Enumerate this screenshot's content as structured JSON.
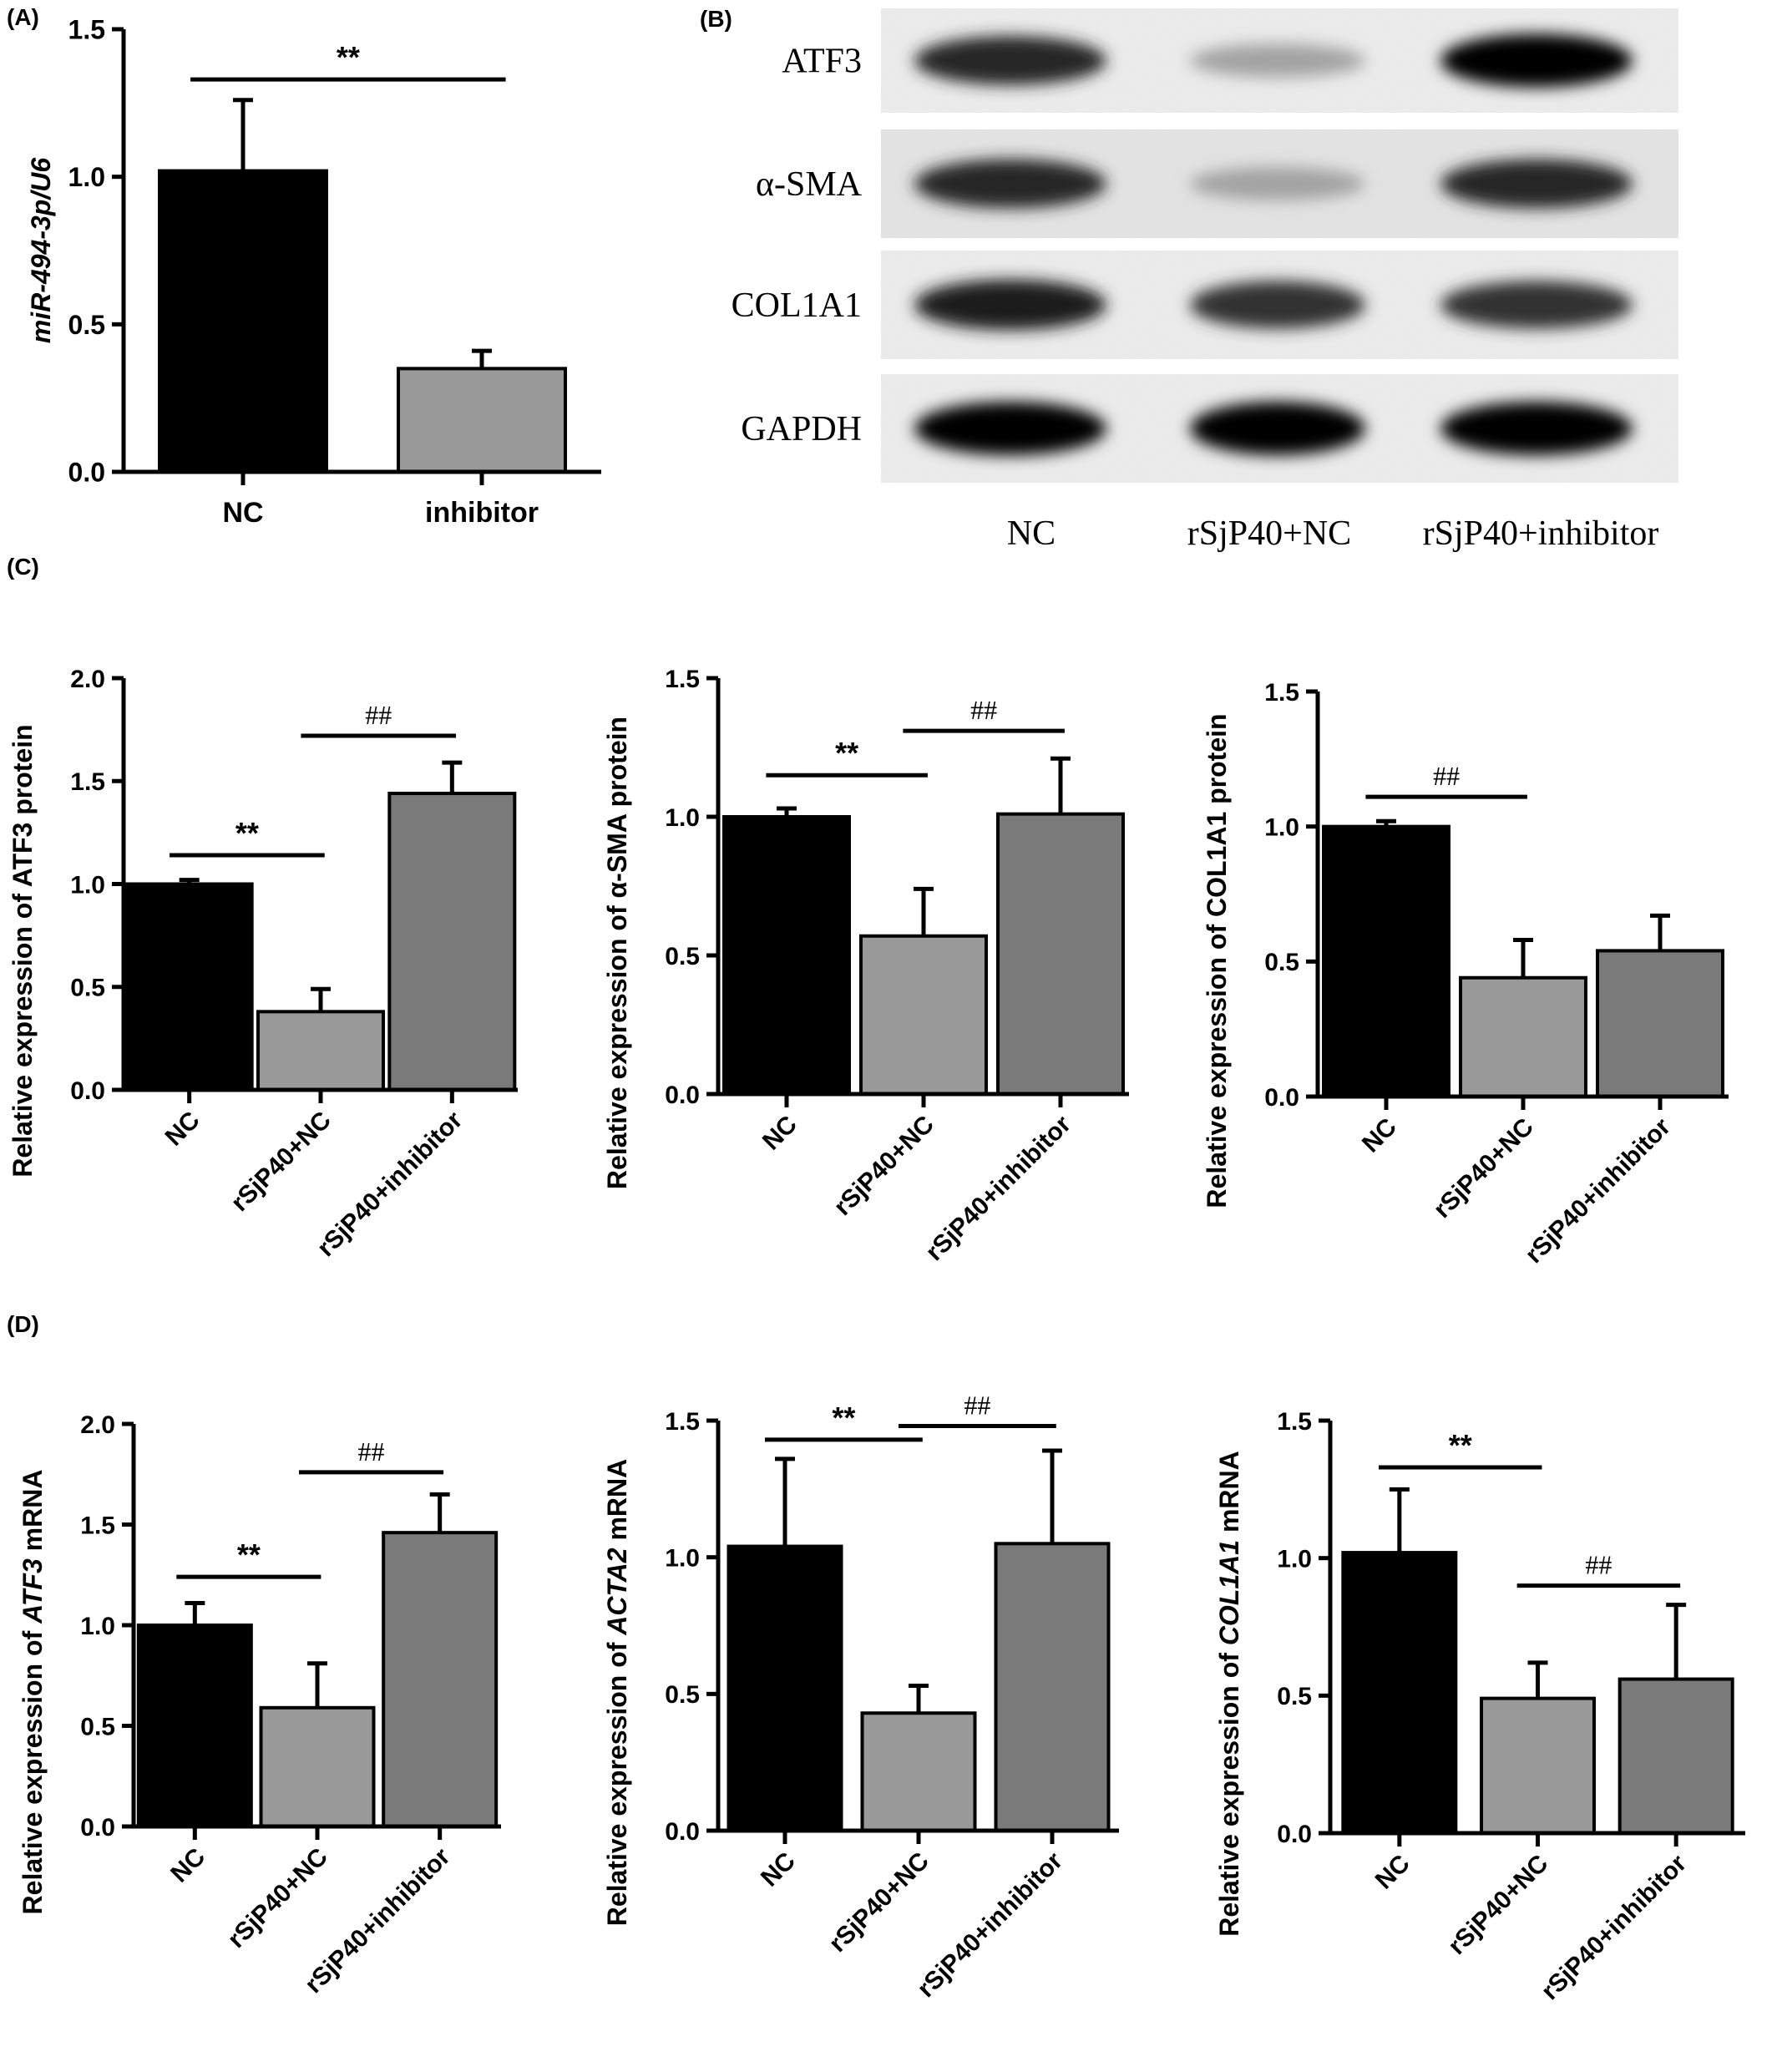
{
  "figure": {
    "panel_letters": {
      "A": "(A)",
      "B": "(B)",
      "C": "(C)",
      "D": "(D)"
    }
  },
  "colors": {
    "black_bar": "#000000",
    "light_gray_bar": "#999999",
    "dark_gray_bar": "#7a7a7a",
    "axis": "#000000",
    "text": "#000000"
  },
  "chart_data": [
    {
      "id": "A",
      "type": "bar",
      "ylabel": "miR-494-3p/U6",
      "categories": [
        "NC",
        "inhibitor"
      ],
      "values": [
        1.02,
        0.35
      ],
      "errors": [
        0.24,
        0.06
      ],
      "ylim": [
        0,
        1.5
      ],
      "yticks": [
        "0.0",
        "0.5",
        "1.0",
        "1.5"
      ],
      "bar_colors": [
        "#000000",
        "#999999"
      ],
      "significance": [
        {
          "from": 0,
          "to": 1,
          "label": "**",
          "y": 1.33,
          "style": "sans"
        }
      ],
      "rotate_labels": false
    },
    {
      "id": "C1",
      "type": "bar",
      "ylabel": "Relative expression of ATF3 protein",
      "categories": [
        "NC",
        "rSjP40+NC",
        "rSjP40+inhibitor"
      ],
      "values": [
        1.0,
        0.38,
        1.44
      ],
      "errors": [
        0.02,
        0.11,
        0.15
      ],
      "ylim": [
        0,
        2.0
      ],
      "yticks": [
        "0.0",
        "0.5",
        "1.0",
        "1.5",
        "2.0"
      ],
      "bar_colors": [
        "#000000",
        "#999999",
        "#7a7a7a"
      ],
      "significance": [
        {
          "from": 0,
          "to": 1,
          "label": "**",
          "y": 1.14,
          "style": "sans"
        },
        {
          "from": 1,
          "to": 2,
          "label": "##",
          "y": 1.72,
          "style": "serif"
        }
      ],
      "rotate_labels": true
    },
    {
      "id": "C2",
      "type": "bar",
      "ylabel": "Relative expression of α-SMA protein",
      "categories": [
        "NC",
        "rSjP40+NC",
        "rSjP40+inhibitor"
      ],
      "values": [
        1.0,
        0.57,
        1.01
      ],
      "errors": [
        0.03,
        0.17,
        0.2
      ],
      "ylim": [
        0,
        1.5
      ],
      "yticks": [
        "0.0",
        "0.5",
        "1.0",
        "1.5"
      ],
      "bar_colors": [
        "#000000",
        "#999999",
        "#7a7a7a"
      ],
      "significance": [
        {
          "from": 0,
          "to": 1,
          "label": "**",
          "y": 1.15,
          "style": "sans"
        },
        {
          "from": 1,
          "to": 2,
          "label": "##",
          "y": 1.31,
          "style": "serif"
        }
      ],
      "rotate_labels": true
    },
    {
      "id": "C3",
      "type": "bar",
      "ylabel": "Relative expression of COL1A1 protein",
      "categories": [
        "NC",
        "rSjP40+NC",
        "rSjP40+inhibitor"
      ],
      "values": [
        1.0,
        0.44,
        0.54
      ],
      "errors": [
        0.02,
        0.14,
        0.13
      ],
      "ylim": [
        0,
        1.5
      ],
      "yticks": [
        "0.0",
        "0.5",
        "1.0",
        "1.5"
      ],
      "bar_colors": [
        "#000000",
        "#999999",
        "#7a7a7a"
      ],
      "significance": [
        {
          "from": 0,
          "to": 1,
          "label": "##",
          "y": 1.11,
          "style": "serif"
        }
      ],
      "rotate_labels": true
    },
    {
      "id": "D1",
      "type": "bar",
      "ylabel": "Relative expression of ATF3 mRNA",
      "ylabel_parts": [
        {
          "text": "Relative expression of ",
          "italic": false
        },
        {
          "text": "ATF3",
          "italic": true
        },
        {
          "text": " mRNA",
          "italic": false
        }
      ],
      "categories": [
        "NC",
        "rSjP40+NC",
        "rSjP40+inhibitor"
      ],
      "values": [
        1.0,
        0.59,
        1.46
      ],
      "errors": [
        0.11,
        0.22,
        0.19
      ],
      "ylim": [
        0,
        2.0
      ],
      "yticks": [
        "0.0",
        "0.5",
        "1.0",
        "1.5",
        "2.0"
      ],
      "bar_colors": [
        "#000000",
        "#999999",
        "#7a7a7a"
      ],
      "significance": [
        {
          "from": 0,
          "to": 1,
          "label": "**",
          "y": 1.24,
          "style": "sans"
        },
        {
          "from": 1,
          "to": 2,
          "label": "##",
          "y": 1.76,
          "style": "serif"
        }
      ],
      "rotate_labels": true
    },
    {
      "id": "D2",
      "type": "bar",
      "ylabel": "Relative expression of ACTA2 mRNA",
      "ylabel_parts": [
        {
          "text": "Relative expression of ",
          "italic": false
        },
        {
          "text": "ACTA2",
          "italic": true
        },
        {
          "text": " mRNA",
          "italic": false
        }
      ],
      "categories": [
        "NC",
        "rSjP40+NC",
        "rSjP40+inhibitor"
      ],
      "values": [
        1.04,
        0.43,
        1.05
      ],
      "errors": [
        0.32,
        0.1,
        0.34
      ],
      "ylim": [
        0,
        1.5
      ],
      "yticks": [
        "0.0",
        "0.5",
        "1.0",
        "1.5"
      ],
      "bar_colors": [
        "#000000",
        "#999999",
        "#7a7a7a"
      ],
      "significance": [
        {
          "from": 0,
          "to": 1,
          "label": "**",
          "y": 1.43,
          "style": "sans"
        },
        {
          "from": 1,
          "to": 2,
          "label": "##",
          "y": 1.48,
          "style": "serif"
        }
      ],
      "rotate_labels": true
    },
    {
      "id": "D3",
      "type": "bar",
      "ylabel": "Relative expression of COL1A1 mRNA",
      "ylabel_parts": [
        {
          "text": "Relative expression of ",
          "italic": false
        },
        {
          "text": "COL1A1",
          "italic": true
        },
        {
          "text": " mRNA",
          "italic": false
        }
      ],
      "categories": [
        "NC",
        "rSjP40+NC",
        "rSjP40+inhibitor"
      ],
      "values": [
        1.02,
        0.49,
        0.56
      ],
      "errors": [
        0.23,
        0.13,
        0.27
      ],
      "ylim": [
        0,
        1.5
      ],
      "yticks": [
        "0.0",
        "0.5",
        "1.0",
        "1.5"
      ],
      "bar_colors": [
        "#000000",
        "#999999",
        "#7a7a7a"
      ],
      "significance": [
        {
          "from": 0,
          "to": 1,
          "label": "**",
          "y": 1.33,
          "style": "sans"
        },
        {
          "from": 1,
          "to": 2,
          "label": "##",
          "y": 0.9,
          "style": "serif"
        }
      ],
      "rotate_labels": true
    }
  ],
  "blot": {
    "rows": [
      {
        "label": "ATF3",
        "intensities": [
          0.85,
          0.3,
          1.0
        ]
      },
      {
        "label": "α-SMA",
        "intensities": [
          0.85,
          0.3,
          0.85
        ]
      },
      {
        "label": "COL1A1",
        "intensities": [
          0.9,
          0.8,
          0.8
        ]
      },
      {
        "label": "GAPDH",
        "intensities": [
          1.0,
          1.0,
          1.0
        ]
      }
    ],
    "lanes": [
      "NC",
      "rSjP40+NC",
      "rSjP40+inhibitor"
    ]
  }
}
